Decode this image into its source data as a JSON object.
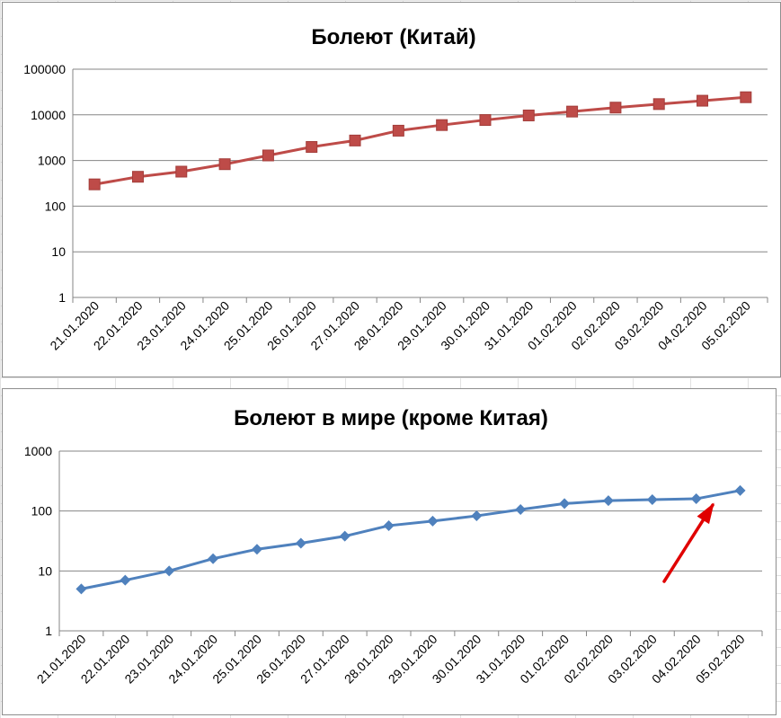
{
  "chart_data": [
    {
      "type": "line",
      "title": "Болеют (Китай)",
      "xlabel": "",
      "ylabel": "",
      "yscale": "log",
      "ylim": [
        1,
        100000
      ],
      "yticks": [
        "1",
        "10",
        "100",
        "1000",
        "10000",
        "100000"
      ],
      "grid": true,
      "legend": "none",
      "categories": [
        "21.01.2020",
        "22.01.2020",
        "23.01.2020",
        "24.01.2020",
        "25.01.2020",
        "26.01.2020",
        "27.01.2020",
        "28.01.2020",
        "29.01.2020",
        "30.01.2020",
        "31.01.2020",
        "01.02.2020",
        "02.02.2020",
        "03.02.2020",
        "04.02.2020",
        "05.02.2020"
      ],
      "series": [
        {
          "values": [
            300,
            440,
            570,
            830,
            1290,
            1980,
            2740,
            4500,
            5970,
            7700,
            9700,
            11800,
            14400,
            17200,
            20400,
            24300
          ],
          "color": "#be4b48",
          "marker": "square"
        }
      ]
    },
    {
      "type": "line",
      "title": "Болеют в мире (кроме Китая)",
      "xlabel": "",
      "ylabel": "",
      "yscale": "log",
      "ylim": [
        1,
        1000
      ],
      "yticks": [
        "1",
        "10",
        "100",
        "1000"
      ],
      "grid": true,
      "legend": "none",
      "categories": [
        "21.01.2020",
        "22.01.2020",
        "23.01.2020",
        "24.01.2020",
        "25.01.2020",
        "26.01.2020",
        "27.01.2020",
        "28.01.2020",
        "29.01.2020",
        "30.01.2020",
        "31.01.2020",
        "01.02.2020",
        "02.02.2020",
        "03.02.2020",
        "04.02.2020",
        "05.02.2020"
      ],
      "series": [
        {
          "values": [
            5,
            7,
            10,
            16,
            23,
            29,
            38,
            57,
            68,
            83,
            106,
            133,
            149,
            155,
            160,
            220
          ],
          "color": "#4f81bd",
          "marker": "diamond"
        }
      ],
      "annotation": {
        "shape": "arrow",
        "color": "#e00000"
      }
    }
  ]
}
